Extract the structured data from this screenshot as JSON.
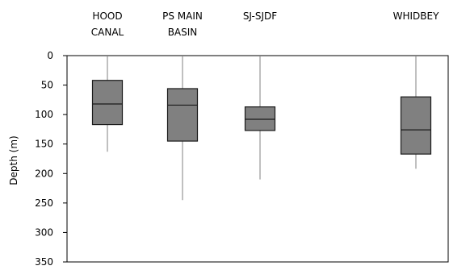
{
  "chart_data": {
    "type": "box",
    "title": "",
    "xlabel": "",
    "ylabel": "Depth (m)",
    "y_inverted": true,
    "ylim": [
      0,
      350
    ],
    "yticks": [
      0,
      50,
      100,
      150,
      200,
      250,
      300,
      350
    ],
    "grid": false,
    "box_color": "#808080",
    "categories": [
      {
        "label": [
          "HOOD",
          "CANAL"
        ],
        "min": 0,
        "q1": 42,
        "median": 82,
        "q3": 117,
        "max": 163
      },
      {
        "label": [
          "PS MAIN",
          "BASIN"
        ],
        "min": 0,
        "q1": 56,
        "median": 84,
        "q3": 145,
        "max": 245
      },
      {
        "label": [
          "SJ-SJDF"
        ],
        "min": 0,
        "q1": 87,
        "median": 108,
        "q3": 127,
        "max": 210
      },
      {
        "label": [
          "WHIDBEY"
        ],
        "min": 0,
        "q1": 70,
        "median": 126,
        "q3": 167,
        "max": 192
      }
    ]
  }
}
